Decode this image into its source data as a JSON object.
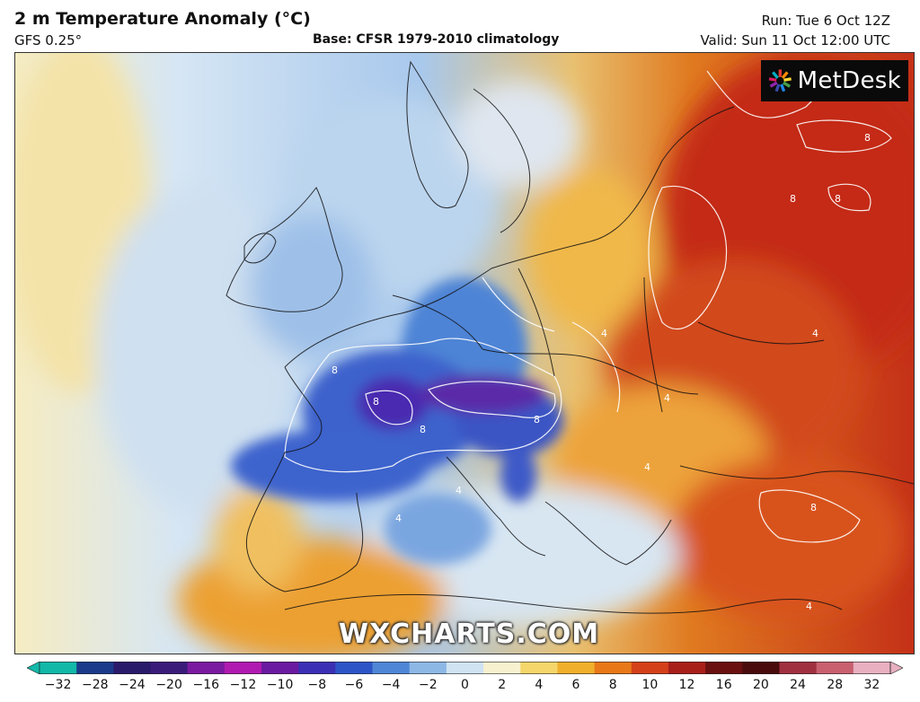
{
  "header": {
    "title": "2 m Temperature Anomaly (°C)",
    "model": "GFS 0.25°",
    "base": "Base: CFSR 1979-2010 climatology",
    "run": "Run: Tue 6 Oct 12Z",
    "valid": "Valid: Sun 11 Oct 12:00 UTC"
  },
  "logo": {
    "text": "MetDesk",
    "icon": "sunburst-icon"
  },
  "watermark": "WXCHARTS.COM",
  "contour_labels": [
    "8",
    "8",
    "8",
    "8",
    "4",
    "4",
    "4",
    "8",
    "8",
    "4",
    "4",
    "4",
    "8",
    "8",
    "4"
  ],
  "colorbar": {
    "min": -32,
    "max": 32,
    "ticks": [
      "−32",
      "−28",
      "−24",
      "−20",
      "−16",
      "−12",
      "−10",
      "−8",
      "−6",
      "−4",
      "−2",
      "0",
      "2",
      "4",
      "6",
      "8",
      "10",
      "12",
      "16",
      "20",
      "24",
      "28",
      "32"
    ],
    "colors": [
      "#12b8a8",
      "#1a3a8a",
      "#2a1a6a",
      "#3a1b7a",
      "#7a1aa0",
      "#b01ab0",
      "#6a1aa0",
      "#3b2fb5",
      "#2d55c8",
      "#4f86d6",
      "#8db8e6",
      "#cfe3f3",
      "#f7f1cf",
      "#f5d66a",
      "#f0b02c",
      "#e87818",
      "#d4401a",
      "#a81f1a",
      "#6a1010",
      "#4a0c0c",
      "#a03040",
      "#c86070",
      "#e8b0c0"
    ]
  }
}
